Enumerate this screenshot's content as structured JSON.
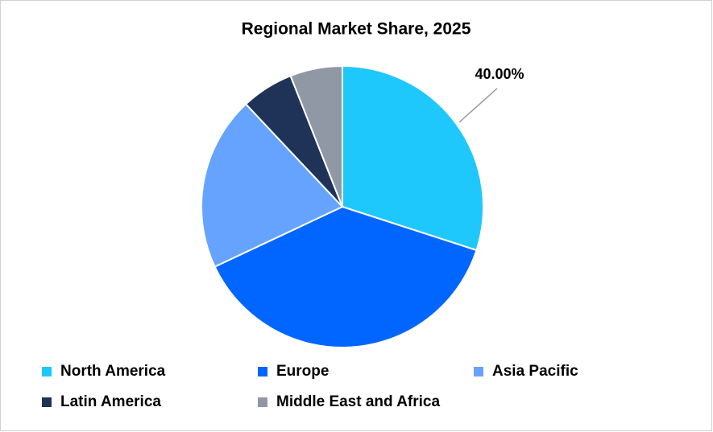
{
  "chart_data": {
    "type": "pie",
    "title": "Regional Market Share, 2025",
    "categories": [
      "North America",
      "Europe",
      "Asia Pacific",
      "Latin America",
      "Middle East and Africa"
    ],
    "values": [
      30,
      38,
      20,
      6,
      6
    ],
    "colors": [
      "#1ec8fc",
      "#0066ff",
      "#66a3ff",
      "#1f3358",
      "#9098a5"
    ],
    "annotation": "40.00%",
    "legend": "bottom"
  }
}
